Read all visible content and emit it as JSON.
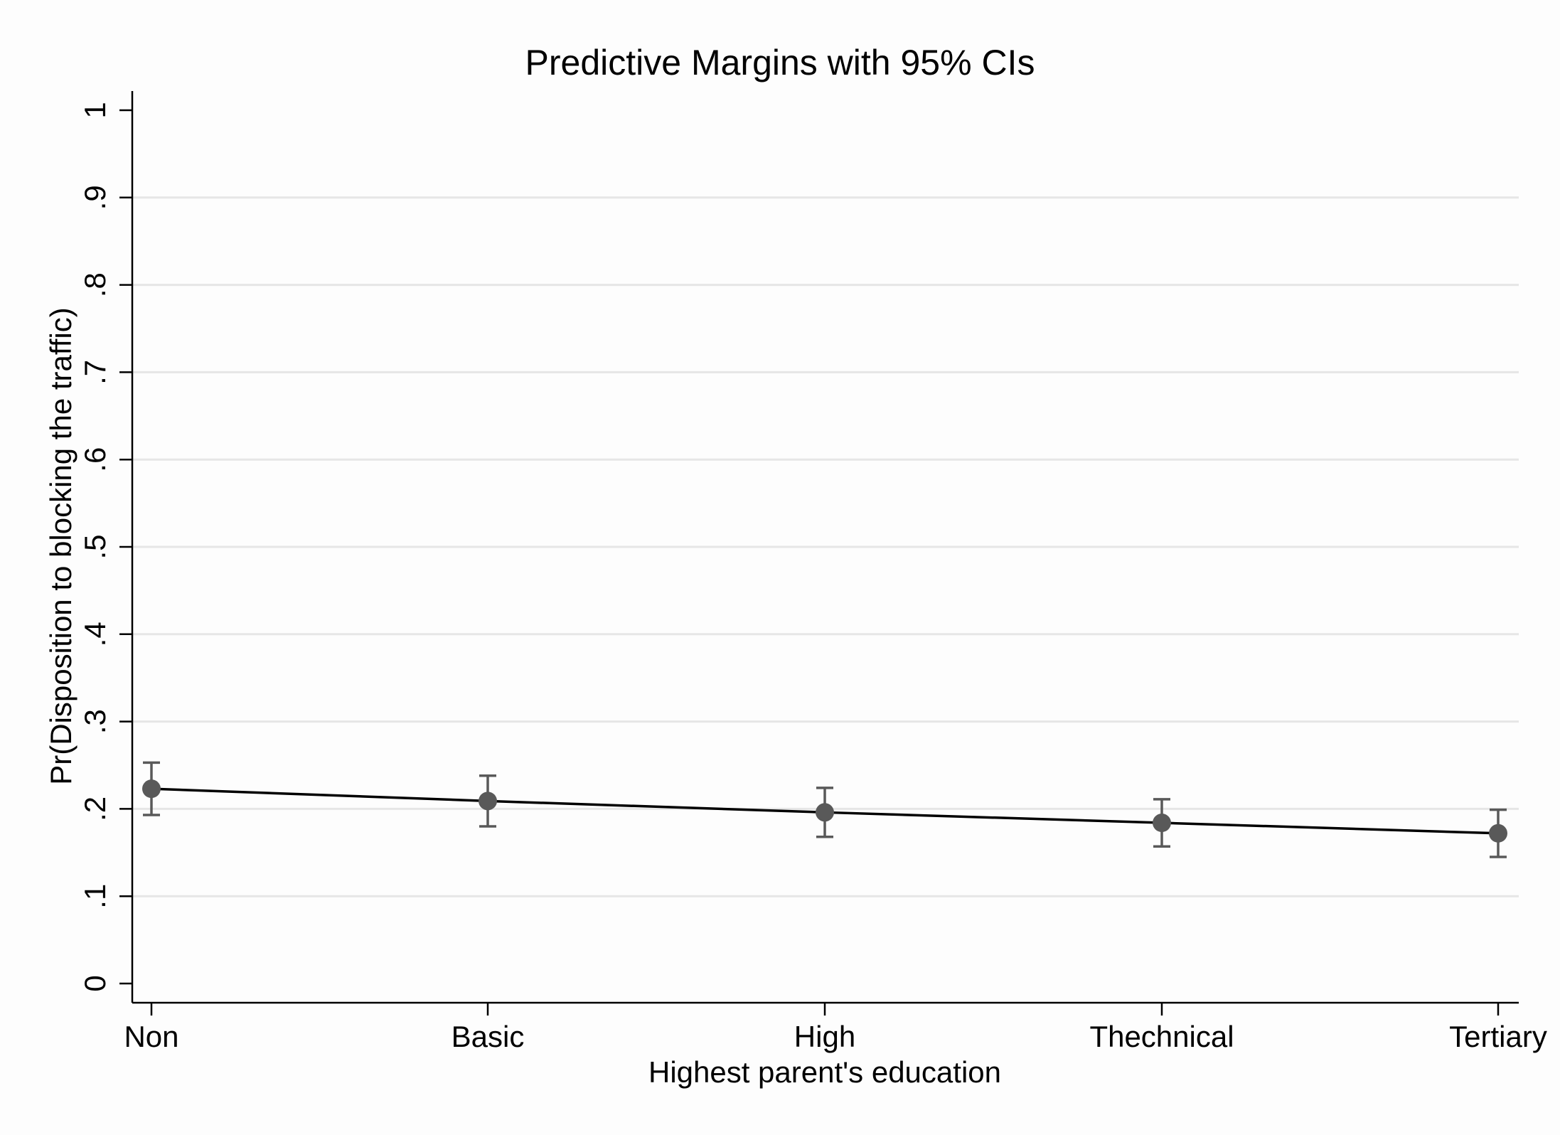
{
  "chart_data": {
    "type": "line",
    "title": "Predictive Margins with 95% CIs",
    "xlabel": "Highest parent's education",
    "ylabel": "Pr(Disposition to blocking the traffic)",
    "categories": [
      "Non",
      "Basic",
      "High",
      "Thechnical",
      "Tertiary"
    ],
    "yticks": [
      {
        "value": 0,
        "label": "0"
      },
      {
        "value": 0.1,
        "label": ".1"
      },
      {
        "value": 0.2,
        "label": ".2"
      },
      {
        "value": 0.3,
        "label": ".3"
      },
      {
        "value": 0.4,
        "label": ".4"
      },
      {
        "value": 0.5,
        "label": ".5"
      },
      {
        "value": 0.6,
        "label": ".6"
      },
      {
        "value": 0.7,
        "label": ".7"
      },
      {
        "value": 0.8,
        "label": ".8"
      },
      {
        "value": 0.9,
        "label": ".9"
      },
      {
        "value": 1,
        "label": "1"
      }
    ],
    "ylim": [
      0,
      1
    ],
    "grid": true,
    "legend": "none",
    "series": [
      {
        "values": [
          0.223,
          0.209,
          0.196,
          0.184,
          0.172
        ],
        "ci_lower": [
          0.193,
          0.18,
          0.168,
          0.157,
          0.145
        ],
        "ci_upper": [
          0.253,
          0.238,
          0.224,
          0.211,
          0.199
        ]
      }
    ],
    "colors": {
      "line": "#000000",
      "marker": "#595959",
      "ci": "#595959",
      "grid": "#e6e6e6"
    }
  }
}
